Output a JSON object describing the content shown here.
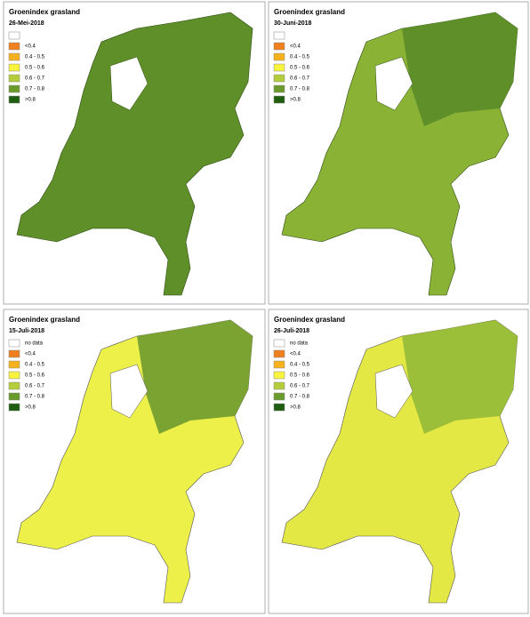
{
  "panels": [
    {
      "title": "Groenindex grasland",
      "date": "26-Mei-2018",
      "legend": [
        {
          "label": "<0.4",
          "color": "#f07f1e"
        },
        {
          "label": "0.4 - 0.5",
          "color": "#f5b21c"
        },
        {
          "label": "0.5 - 0.6",
          "color": "#f8f33c"
        },
        {
          "label": "0.6 - 0.7",
          "color": "#b4cd3a"
        },
        {
          "label": "0.7 - 0.8",
          "color": "#6a9a2a"
        },
        {
          "label": ">0.8",
          "color": "#1f5e10"
        }
      ]
    },
    {
      "title": "Groenindex grasland",
      "date": "30-Juni-2018",
      "legend": [
        {
          "label": "<0.4",
          "color": "#f07f1e"
        },
        {
          "label": "0.4 - 0.5",
          "color": "#f5b21c"
        },
        {
          "label": "0.5 - 0.6",
          "color": "#f8f33c"
        },
        {
          "label": "0.6 - 0.7",
          "color": "#b4cd3a"
        },
        {
          "label": "0.7 - 0.8",
          "color": "#6a9a2a"
        },
        {
          "label": ">0.8",
          "color": "#1f5e10"
        }
      ]
    },
    {
      "title": "Groenindex grasland",
      "date": "15-Juli-2018",
      "legend": [
        {
          "label": "no data",
          "color": "#ffffff"
        },
        {
          "label": "<0.4",
          "color": "#f07f1e"
        },
        {
          "label": "0.4 - 0.5",
          "color": "#f5b21c"
        },
        {
          "label": "0.5 - 0.6",
          "color": "#f8f33c"
        },
        {
          "label": "0.6 - 0.7",
          "color": "#b4cd3a"
        },
        {
          "label": "0.7 - 0.8",
          "color": "#6a9a2a"
        },
        {
          "label": ">0.8",
          "color": "#1f5e10"
        }
      ]
    },
    {
      "title": "Groenindex grasland",
      "date": "26-Juli-2018",
      "legend": [
        {
          "label": "no data",
          "color": "#ffffff"
        },
        {
          "label": "<0.4",
          "color": "#f07f1e"
        },
        {
          "label": "0.4 - 0.5",
          "color": "#f5b21c"
        },
        {
          "label": "0.5 - 0.6",
          "color": "#f8f33c"
        },
        {
          "label": "0.6 - 0.7",
          "color": "#b4cd3a"
        },
        {
          "label": "0.7 - 0.8",
          "color": "#6a9a2a"
        },
        {
          "label": ">0.8",
          "color": "#1f5e10"
        }
      ]
    }
  ]
}
